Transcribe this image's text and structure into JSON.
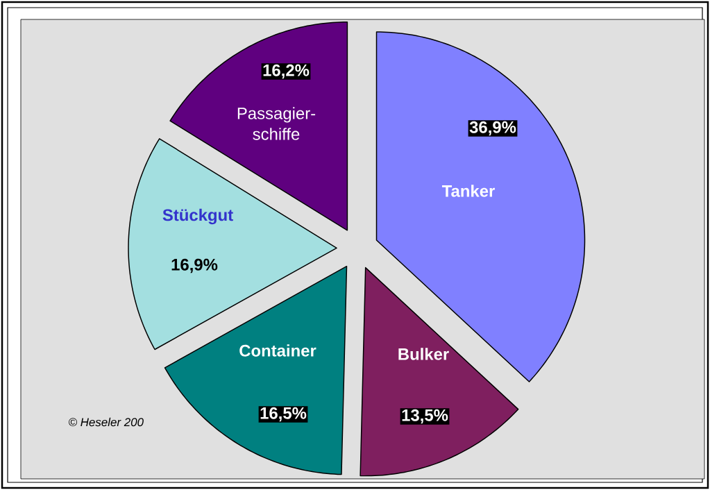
{
  "chart_data": {
    "type": "pie",
    "categories": [
      "Tanker",
      "Bulker",
      "Container",
      "Stückgut",
      "Passagier-schiffe"
    ],
    "values": [
      36.9,
      13.5,
      16.5,
      16.9,
      16.2
    ],
    "value_labels": [
      "36,9%",
      "13,5%",
      "16,5%",
      "16,9%",
      "16,2%"
    ],
    "colors": [
      "#8080ff",
      "#7f1f5f",
      "#008080",
      "#a3dfe0",
      "#5f007f"
    ],
    "annotations": [
      "© Heseler 200"
    ]
  }
}
